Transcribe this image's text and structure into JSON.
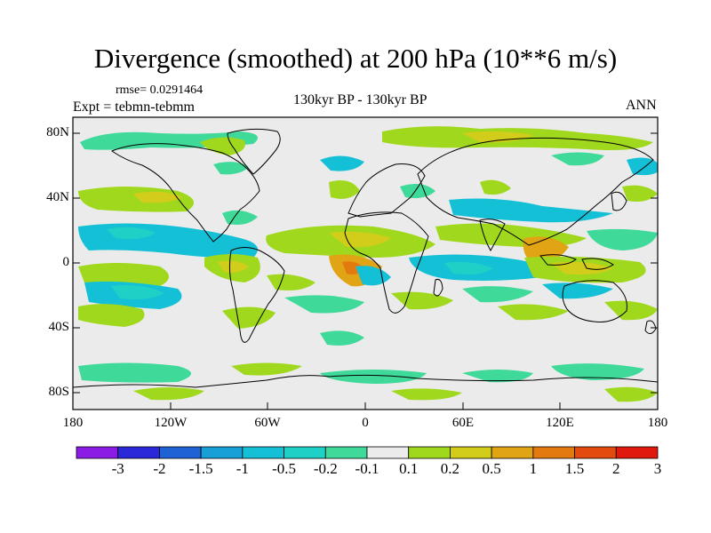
{
  "title": "Divergence (smoothed) at 200 hPa (10**6 m/s)",
  "rmse_text": "rmse= 0.0291464",
  "expt_text": "Expt = tebmn-tebmm",
  "subtitle": "130kyr BP - 130kyr BP",
  "period": "ANN",
  "lat_labels": [
    "80N",
    "40N",
    "0",
    "40S",
    "80S"
  ],
  "lon_labels": [
    "180",
    "120W",
    "60W",
    "0",
    "60E",
    "120E",
    "180"
  ],
  "colorbar": {
    "labels": [
      "-3",
      "-2",
      "-1.5",
      "-1",
      "-0.5",
      "-0.2",
      "-0.1",
      "0.1",
      "0.2",
      "0.5",
      "1",
      "1.5",
      "2",
      "3"
    ],
    "colors": [
      "#8a1ce6",
      "#2a28d8",
      "#1f62d6",
      "#179fd8",
      "#14c0d6",
      "#1fd0c6",
      "#3fd99a",
      "#ebebeb",
      "#a0d81e",
      "#d2cc1a",
      "#e1a414",
      "#e27a10",
      "#e24a0e",
      "#e0180e"
    ]
  }
}
